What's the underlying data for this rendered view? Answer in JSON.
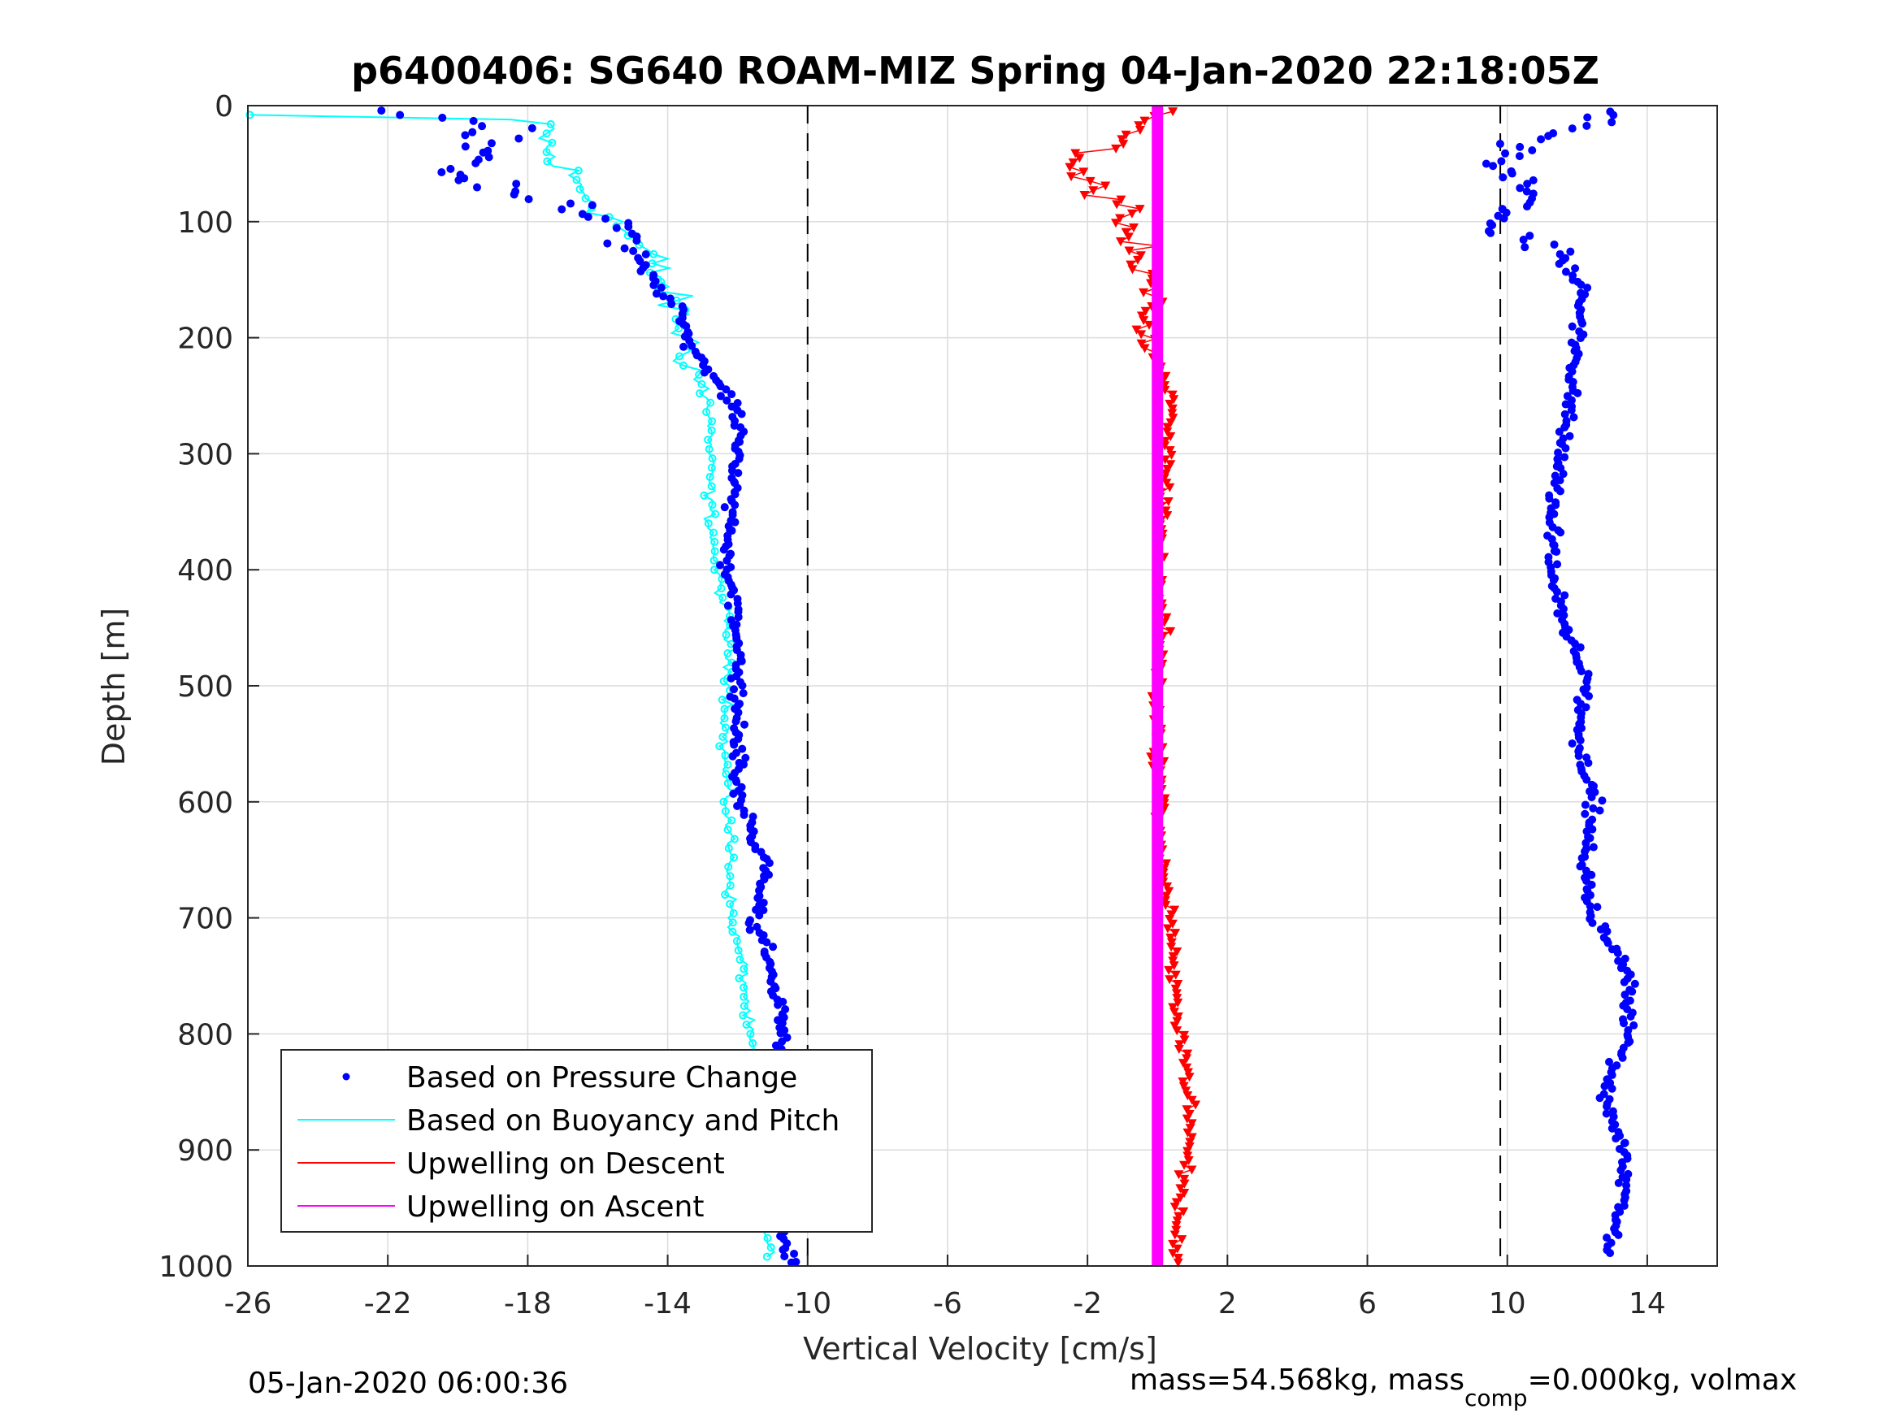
{
  "chart_data": {
    "type": "scatter",
    "title": "p6400406: SG640 ROAM-MIZ Spring 04-Jan-2020 22:18:05Z",
    "xlabel": "Vertical Velocity [cm/s]",
    "ylabel": "Depth [m]",
    "xlim": [
      -26,
      16
    ],
    "ylim": [
      0,
      1000
    ],
    "y_reversed": true,
    "grid": true,
    "x_ticks": [
      -26,
      -22,
      -18,
      -14,
      -10,
      -6,
      -2,
      2,
      6,
      10,
      14
    ],
    "x_tick_labels": [
      "-26",
      "-22",
      "-18",
      "-14",
      "-10",
      "-6",
      "-2",
      "2",
      "6",
      "10",
      "14"
    ],
    "y_ticks": [
      0,
      100,
      200,
      300,
      400,
      500,
      600,
      700,
      800,
      900,
      1000
    ],
    "y_tick_labels": [
      "0",
      "100",
      "200",
      "300",
      "400",
      "500",
      "600",
      "700",
      "800",
      "900",
      "1000"
    ],
    "reference_lines_x": [
      -10,
      9.8
    ],
    "legend_position": "bottom-left",
    "legend": [
      {
        "label": "Based on Pressure Change",
        "color": "#0000ff",
        "style": "dot"
      },
      {
        "label": "Based on Buoyancy and Pitch",
        "color": "#00ffff",
        "style": "line"
      },
      {
        "label": "Upwelling on Descent",
        "color": "#ff0000",
        "style": "line"
      },
      {
        "label": "Upwelling on Ascent",
        "color": "#ff00ff",
        "style": "line"
      }
    ],
    "series": [
      {
        "name": "Based on Pressure Change",
        "color": "#0000ff",
        "descent_profile": [
          {
            "depth": 5,
            "v": -22.0
          },
          {
            "depth": 20,
            "v": -18.5
          },
          {
            "depth": 40,
            "v": -19.0
          },
          {
            "depth": 60,
            "v": -20.0
          },
          {
            "depth": 80,
            "v": -17.5
          },
          {
            "depth": 100,
            "v": -15.5
          },
          {
            "depth": 120,
            "v": -15.0
          },
          {
            "depth": 150,
            "v": -14.5
          },
          {
            "depth": 180,
            "v": -13.5
          },
          {
            "depth": 200,
            "v": -13.5
          },
          {
            "depth": 230,
            "v": -12.8
          },
          {
            "depth": 260,
            "v": -12.0
          },
          {
            "depth": 300,
            "v": -12.0
          },
          {
            "depth": 350,
            "v": -12.2
          },
          {
            "depth": 400,
            "v": -12.3
          },
          {
            "depth": 450,
            "v": -12.0
          },
          {
            "depth": 500,
            "v": -12.0
          },
          {
            "depth": 550,
            "v": -12.0
          },
          {
            "depth": 600,
            "v": -12.0
          },
          {
            "depth": 650,
            "v": -11.2
          },
          {
            "depth": 700,
            "v": -11.5
          },
          {
            "depth": 750,
            "v": -11.0
          },
          {
            "depth": 800,
            "v": -10.7
          },
          {
            "depth": 850,
            "v": -10.8
          },
          {
            "depth": 900,
            "v": -10.6
          },
          {
            "depth": 950,
            "v": -10.8
          },
          {
            "depth": 1000,
            "v": -10.5
          }
        ],
        "ascent_profile": [
          {
            "depth": 5,
            "v": 13.0
          },
          {
            "depth": 30,
            "v": 10.5
          },
          {
            "depth": 50,
            "v": 10.0
          },
          {
            "depth": 70,
            "v": 10.8
          },
          {
            "depth": 100,
            "v": 9.5
          },
          {
            "depth": 130,
            "v": 11.5
          },
          {
            "depth": 160,
            "v": 12.2
          },
          {
            "depth": 200,
            "v": 12.0
          },
          {
            "depth": 250,
            "v": 11.8
          },
          {
            "depth": 300,
            "v": 11.5
          },
          {
            "depth": 350,
            "v": 11.3
          },
          {
            "depth": 400,
            "v": 11.3
          },
          {
            "depth": 450,
            "v": 11.6
          },
          {
            "depth": 500,
            "v": 12.3
          },
          {
            "depth": 550,
            "v": 12.0
          },
          {
            "depth": 600,
            "v": 12.5
          },
          {
            "depth": 650,
            "v": 12.2
          },
          {
            "depth": 700,
            "v": 12.5
          },
          {
            "depth": 750,
            "v": 13.5
          },
          {
            "depth": 800,
            "v": 13.5
          },
          {
            "depth": 850,
            "v": 12.8
          },
          {
            "depth": 900,
            "v": 13.3
          },
          {
            "depth": 950,
            "v": 13.3
          },
          {
            "depth": 990,
            "v": 12.8
          }
        ]
      },
      {
        "name": "Based on Buoyancy and Pitch",
        "color": "#00ffff",
        "descent_profile": [
          {
            "depth": 8,
            "v": -26.0
          },
          {
            "depth": 10,
            "v": -20.0
          },
          {
            "depth": 15,
            "v": -17.5
          },
          {
            "depth": 40,
            "v": -17.5
          },
          {
            "depth": 70,
            "v": -16.5
          },
          {
            "depth": 100,
            "v": -15.5
          },
          {
            "depth": 130,
            "v": -14.5
          },
          {
            "depth": 160,
            "v": -14.0
          },
          {
            "depth": 200,
            "v": -13.5
          },
          {
            "depth": 230,
            "v": -13.2
          },
          {
            "depth": 260,
            "v": -12.8
          },
          {
            "depth": 300,
            "v": -12.8
          },
          {
            "depth": 350,
            "v": -12.8
          },
          {
            "depth": 400,
            "v": -12.6
          },
          {
            "depth": 450,
            "v": -12.3
          },
          {
            "depth": 500,
            "v": -12.2
          },
          {
            "depth": 550,
            "v": -12.4
          },
          {
            "depth": 600,
            "v": -12.3
          },
          {
            "depth": 650,
            "v": -12.2
          },
          {
            "depth": 700,
            "v": -12.2
          },
          {
            "depth": 750,
            "v": -11.8
          },
          {
            "depth": 800,
            "v": -11.7
          },
          {
            "depth": 850,
            "v": -11.3
          },
          {
            "depth": 900,
            "v": -11.3
          },
          {
            "depth": 950,
            "v": -11.3
          },
          {
            "depth": 995,
            "v": -11.0
          }
        ]
      },
      {
        "name": "Upwelling on Descent",
        "color": "#ff0000",
        "descent_profile": [
          {
            "depth": 5,
            "v": 0.0
          },
          {
            "depth": 30,
            "v": -1.0
          },
          {
            "depth": 50,
            "v": -2.5
          },
          {
            "depth": 70,
            "v": -1.8
          },
          {
            "depth": 100,
            "v": -0.8
          },
          {
            "depth": 130,
            "v": -0.5
          },
          {
            "depth": 160,
            "v": 0.0
          },
          {
            "depth": 200,
            "v": -0.6
          },
          {
            "depth": 250,
            "v": 0.4
          },
          {
            "depth": 300,
            "v": 0.3
          },
          {
            "depth": 350,
            "v": 0.2
          },
          {
            "depth": 400,
            "v": 0.0
          },
          {
            "depth": 450,
            "v": 0.2
          },
          {
            "depth": 500,
            "v": 0.0
          },
          {
            "depth": 550,
            "v": 0.0
          },
          {
            "depth": 600,
            "v": 0.1
          },
          {
            "depth": 650,
            "v": 0.1
          },
          {
            "depth": 700,
            "v": 0.4
          },
          {
            "depth": 750,
            "v": 0.4
          },
          {
            "depth": 800,
            "v": 0.7
          },
          {
            "depth": 850,
            "v": 0.9
          },
          {
            "depth": 900,
            "v": 0.9
          },
          {
            "depth": 950,
            "v": 0.6
          },
          {
            "depth": 1000,
            "v": 0.5
          }
        ]
      },
      {
        "name": "Upwelling on Ascent",
        "color": "#ff00ff",
        "descent_profile": [
          {
            "depth": 0,
            "v": 0.0
          },
          {
            "depth": 1000,
            "v": 0.0
          }
        ]
      }
    ]
  },
  "footer": {
    "date": "05-Jan-2020 06:00:36",
    "mass_prefix": "mass=54.568kg, mass",
    "mass_sub": "comp",
    "mass_suffix": "=0.000kg, volmax"
  }
}
